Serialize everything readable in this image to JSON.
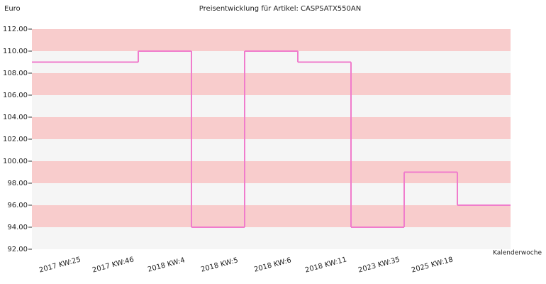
{
  "chart_data": {
    "type": "step",
    "title": "Preisentwicklung für Artikel: CASPSATX550AN",
    "y_label": "Euro",
    "x_label": "Kalenderwoche",
    "categories": [
      "2017 KW:25",
      "2017 KW:46",
      "2018 KW:4",
      "2018 KW:5",
      "2018 KW:6",
      "2018 KW:11",
      "2023 KW:35",
      "2025 KW:18",
      null
    ],
    "values": [
      109,
      109,
      110,
      94,
      110,
      109,
      94,
      99,
      96
    ],
    "color": "#f07ccc",
    "band_colors": [
      "#f5f5f5",
      "#f8cccc"
    ],
    "ylim": [
      92,
      112
    ],
    "yticks": [
      {
        "value": 92,
        "label": "92.00"
      },
      {
        "value": 94,
        "label": "94.00"
      },
      {
        "value": 96,
        "label": "96.00"
      },
      {
        "value": 98,
        "label": "98.00"
      },
      {
        "value": 100,
        "label": "100.00"
      },
      {
        "value": 102,
        "label": "102.00"
      },
      {
        "value": 104,
        "label": "104.00"
      },
      {
        "value": 106,
        "label": "106.00"
      },
      {
        "value": 108,
        "label": "108.00"
      },
      {
        "value": 110,
        "label": "110.00"
      },
      {
        "value": 112,
        "label": "112.00"
      }
    ]
  }
}
